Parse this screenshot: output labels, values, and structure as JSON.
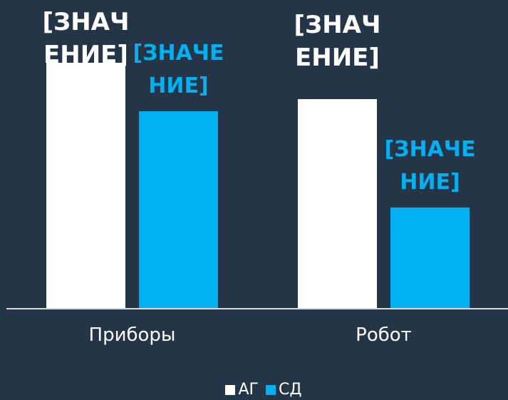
{
  "chart_data": {
    "type": "bar",
    "categories": [
      "Приборы",
      "Робот"
    ],
    "series": [
      {
        "name": "АГ",
        "color": "#ffffff",
        "values": [
          344,
          293
        ],
        "value_labels": [
          "[ЗНАЧЕНИЕ]",
          "[ЗНАЧЕНИЕ]"
        ]
      },
      {
        "name": "СД",
        "color": "#00b0f0",
        "values": [
          276,
          141
        ],
        "value_labels": [
          "[ЗНАЧЕНИЕ]",
          "[ЗНАЧЕНИЕ]"
        ]
      }
    ],
    "ylim": [
      0,
      400
    ],
    "legend": "bottom"
  }
}
